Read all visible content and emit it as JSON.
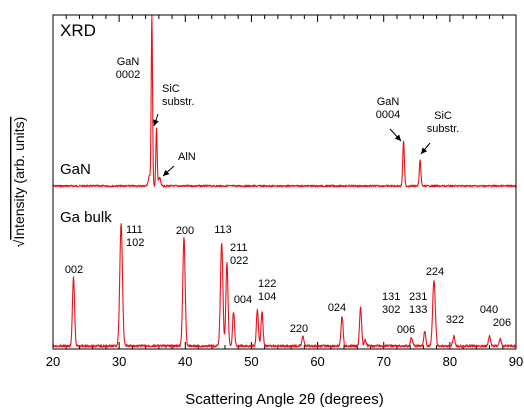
{
  "chart_data": {
    "type": "line",
    "panel_label": "XRD",
    "xlabel": "Scattering Angle 2θ (degrees)",
    "ylabel_prefix": "√",
    "ylabel": "Intensity (arb. units)",
    "xlim": [
      20,
      90
    ],
    "x_ticks": [
      20,
      30,
      40,
      50,
      60,
      70,
      80,
      90
    ],
    "colors": {
      "series": "#e8121a",
      "axis": "#000000"
    },
    "series": [
      {
        "name": "GaN",
        "baseline": 0.0,
        "peaks": [
          {
            "x": 34.6,
            "height": 0.06,
            "width": 0.18
          },
          {
            "x": 34.95,
            "height": 1.0,
            "width": 0.1
          },
          {
            "x": 35.65,
            "height": 0.34,
            "width": 0.1
          },
          {
            "x": 36.1,
            "height": 0.05,
            "width": 0.15
          },
          {
            "x": 73.0,
            "height": 0.27,
            "width": 0.12
          },
          {
            "x": 75.5,
            "height": 0.15,
            "width": 0.12
          }
        ]
      },
      {
        "name": "Ga bulk",
        "baseline": 0.0,
        "peaks": [
          {
            "x": 23.1,
            "height": 0.48,
            "width": 0.16
          },
          {
            "x": 30.3,
            "height": 0.86,
            "width": 0.2
          },
          {
            "x": 39.8,
            "height": 0.76,
            "width": 0.18
          },
          {
            "x": 45.5,
            "height": 0.73,
            "width": 0.18
          },
          {
            "x": 46.3,
            "height": 0.58,
            "width": 0.16
          },
          {
            "x": 47.3,
            "height": 0.24,
            "width": 0.15
          },
          {
            "x": 50.9,
            "height": 0.26,
            "width": 0.15
          },
          {
            "x": 51.6,
            "height": 0.24,
            "width": 0.15
          },
          {
            "x": 57.8,
            "height": 0.07,
            "width": 0.15
          },
          {
            "x": 63.7,
            "height": 0.21,
            "width": 0.15
          },
          {
            "x": 66.5,
            "height": 0.28,
            "width": 0.15
          },
          {
            "x": 67.2,
            "height": 0.04,
            "width": 0.15
          },
          {
            "x": 74.2,
            "height": 0.06,
            "width": 0.15
          },
          {
            "x": 76.2,
            "height": 0.1,
            "width": 0.15
          },
          {
            "x": 77.6,
            "height": 0.46,
            "width": 0.2
          },
          {
            "x": 80.6,
            "height": 0.07,
            "width": 0.15
          },
          {
            "x": 86.0,
            "height": 0.07,
            "width": 0.15
          },
          {
            "x": 87.6,
            "height": 0.05,
            "width": 0.15
          }
        ]
      }
    ],
    "annotations": [
      {
        "text": "GaN\n0002",
        "series": "GaN"
      },
      {
        "text": "SiC\nsubstr.",
        "series": "GaN",
        "arrow": true
      },
      {
        "text": "AlN",
        "series": "GaN",
        "arrow": true
      },
      {
        "text": "GaN\n0004",
        "series": "GaN",
        "arrow": true
      },
      {
        "text": "SiC\nsubstr.",
        "series": "GaN",
        "arrow": true
      },
      {
        "text": "002",
        "series": "Ga bulk"
      },
      {
        "text": "111\n102",
        "series": "Ga bulk"
      },
      {
        "text": "200",
        "series": "Ga bulk"
      },
      {
        "text": "113",
        "series": "Ga bulk"
      },
      {
        "text": "211\n022",
        "series": "Ga bulk"
      },
      {
        "text": "004",
        "series": "Ga bulk"
      },
      {
        "text": "122\n104",
        "series": "Ga bulk"
      },
      {
        "text": "220",
        "series": "Ga bulk"
      },
      {
        "text": "024",
        "series": "Ga bulk"
      },
      {
        "text": "131\n302",
        "series": "Ga bulk"
      },
      {
        "text": "006",
        "series": "Ga bulk"
      },
      {
        "text": "231\n133",
        "series": "Ga bulk"
      },
      {
        "text": "224",
        "series": "Ga bulk"
      },
      {
        "text": "322",
        "series": "Ga bulk"
      },
      {
        "text": "040",
        "series": "Ga bulk"
      },
      {
        "text": "206",
        "series": "Ga bulk"
      }
    ]
  }
}
